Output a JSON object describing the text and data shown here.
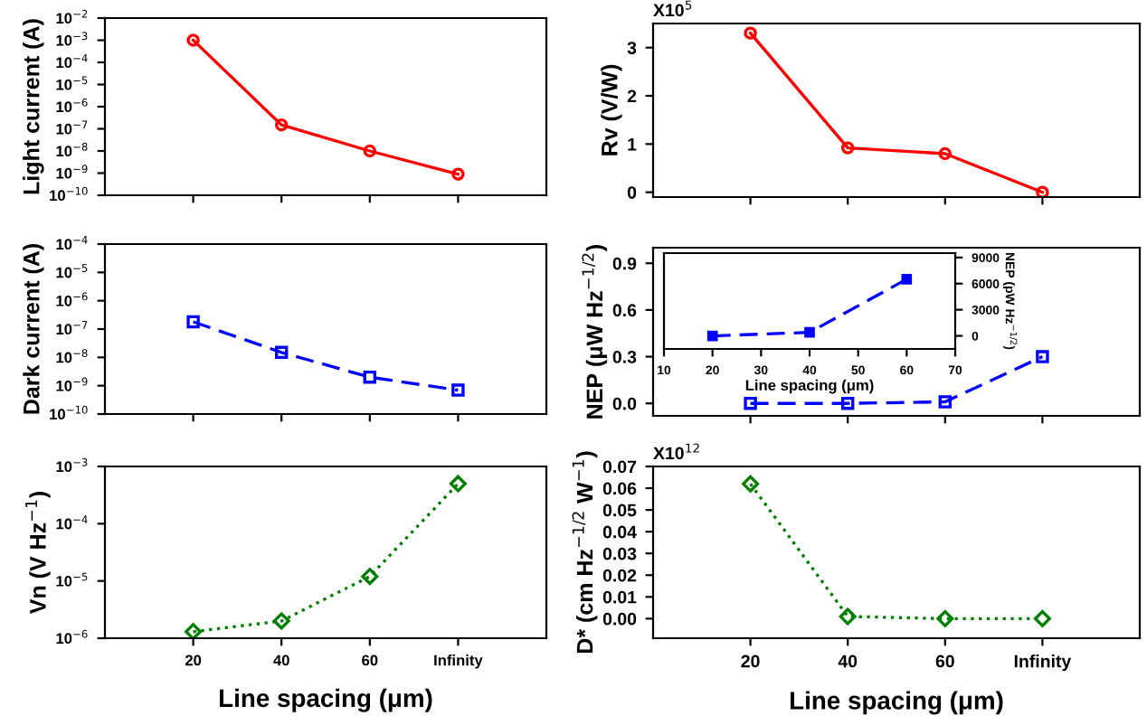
{
  "chart_data": [
    {
      "type": "line",
      "ylabel": "Light current (A)",
      "categories": [
        null,
        null,
        null,
        null
      ],
      "series": [
        {
          "color": "#ff0000",
          "values": [
            0.001,
            1.5e-07,
            1e-08,
            9e-10
          ]
        }
      ],
      "log": "y",
      "ylim": [
        1e-10,
        0.01
      ],
      "yticks": [
        {
          "value": 0.01,
          "label": "10$^{−2}$"
        },
        {
          "value": 0.001,
          "label": "10$^{−3}$"
        },
        {
          "value": 0.0001,
          "label": "10$^{−4}$"
        },
        {
          "value": 1e-05,
          "label": "10$^{−5}$"
        },
        {
          "value": 1e-06,
          "label": "10$^{−6}$"
        },
        {
          "value": 1e-07,
          "label": "10$^{−7}$"
        },
        {
          "value": 1e-08,
          "label": "10$^{−8}$"
        },
        {
          "value": 1e-09,
          "label": "10$^{−9}$"
        },
        {
          "value": 1e-10,
          "label": "10$^{−10}$"
        }
      ],
      "marker": "circle",
      "line_style": "solid",
      "tick_labels": "y"
    },
    {
      "type": "line",
      "ylabel": "Rv (V/W)",
      "annotations": [
        "X10$^{5}$"
      ],
      "categories": [
        null,
        null,
        null,
        null
      ],
      "series": [
        {
          "color": "#ff0000",
          "values": [
            3.3,
            0.92,
            0.8,
            0.0
          ]
        }
      ],
      "ylim": [
        -0.1,
        3.5
      ],
      "yticks": [
        0,
        1,
        2,
        3
      ],
      "marker": "circle",
      "line_style": "solid",
      "tick_labels": "y"
    },
    {
      "type": "line",
      "ylabel": "Dark current (A)",
      "categories": [
        null,
        null,
        null,
        null
      ],
      "series": [
        {
          "color": "#0000ff",
          "values": [
            1.8e-07,
            1.5e-08,
            2e-09,
            7e-10
          ]
        }
      ],
      "log": "y",
      "ylim": [
        1e-10,
        0.0001
      ],
      "yticks": [
        {
          "value": 0.0001,
          "label": "10$^{−4}$"
        },
        {
          "value": 1e-05,
          "label": "10$^{−5}$"
        },
        {
          "value": 1e-06,
          "label": "10$^{−6}$"
        },
        {
          "value": 1e-07,
          "label": "10$^{−7}$"
        },
        {
          "value": 1e-08,
          "label": "10$^{−8}$"
        },
        {
          "value": 1e-09,
          "label": "10$^{−9}$"
        },
        {
          "value": 1e-10,
          "label": "10$^{−10}$"
        }
      ],
      "marker": "square",
      "line_style": "dashed",
      "tick_labels": "y"
    },
    {
      "type": "line",
      "ylabel": "NEP (μW Hz$^{−1/2}$)",
      "categories": [
        null,
        null,
        null,
        null
      ],
      "series": [
        {
          "color": "#0000ff",
          "values": [
            0.0,
            0.0,
            0.01,
            0.3
          ]
        }
      ],
      "ylim": [
        -0.08,
        1.0
      ],
      "yticks": [
        {
          "value": 0,
          "label": "0.0"
        },
        0.3,
        0.6,
        0.9
      ],
      "marker": "square",
      "line_style": "dashed",
      "tick_labels": "y"
    },
    {
      "type": "line",
      "xlabel": "Line spacing (μm)",
      "y2label": "NEP (pW Hz$^{−1/2}$)",
      "x": [
        20,
        40,
        60
      ],
      "series": [
        {
          "color": "#0000ff",
          "values": [
            0,
            400,
            6500
          ],
          "axis": "y2"
        }
      ],
      "xlim": [
        10,
        70
      ],
      "xticks": [
        10,
        20,
        30,
        40,
        50,
        60,
        70
      ],
      "y2lim": [
        -1500,
        9500
      ],
      "y2ticks": [
        0,
        3000,
        6000,
        9000
      ],
      "marker": "square",
      "line_style": "dashed"
    },
    {
      "type": "line",
      "xlabel": "Line spacing (μm)",
      "ylabel": "Vn (V Hz$^{−1}$)",
      "categories": [
        "20",
        "40",
        "60",
        "Infinity"
      ],
      "series": [
        {
          "color": "#008000",
          "values": [
            1.3e-06,
            2e-06,
            1.2e-05,
            0.0005
          ]
        }
      ],
      "log": "y",
      "ylim": [
        1e-06,
        0.001
      ],
      "yticks": [
        {
          "value": 0.001,
          "label": "10$^{−3}$"
        },
        {
          "value": 0.0001,
          "label": "10$^{−4}$"
        },
        {
          "value": 1e-05,
          "label": "10$^{−5}$"
        },
        {
          "value": 1e-06,
          "label": "10$^{−6}$"
        }
      ],
      "marker": "diamond",
      "line_style": "dotted"
    },
    {
      "type": "line",
      "xlabel": "Line spacing (μm)",
      "ylabel": "D* (cm Hz$^{−1/2}$ W$^{−1}$)",
      "annotations": [
        "X10$^{12}$"
      ],
      "categories": [
        "20",
        "40",
        "60",
        "Infinity"
      ],
      "series": [
        {
          "color": "#008000",
          "values": [
            0.062,
            0.001,
            0.0,
            0.0
          ]
        }
      ],
      "ylim": [
        -0.009,
        0.07
      ],
      "yticks": [
        {
          "value": 0,
          "label": "0.00"
        },
        {
          "value": 0.01,
          "label": "0.01"
        },
        {
          "value": 0.02,
          "label": "0.02"
        },
        {
          "value": 0.03,
          "label": "0.03"
        },
        {
          "value": 0.04,
          "label": "0.04"
        },
        {
          "value": 0.05,
          "label": "0.05"
        },
        {
          "value": 0.06,
          "label": "0.06"
        },
        {
          "value": 0.07,
          "label": "0.07"
        }
      ],
      "marker": "diamond",
      "line_style": "dotted"
    }
  ]
}
